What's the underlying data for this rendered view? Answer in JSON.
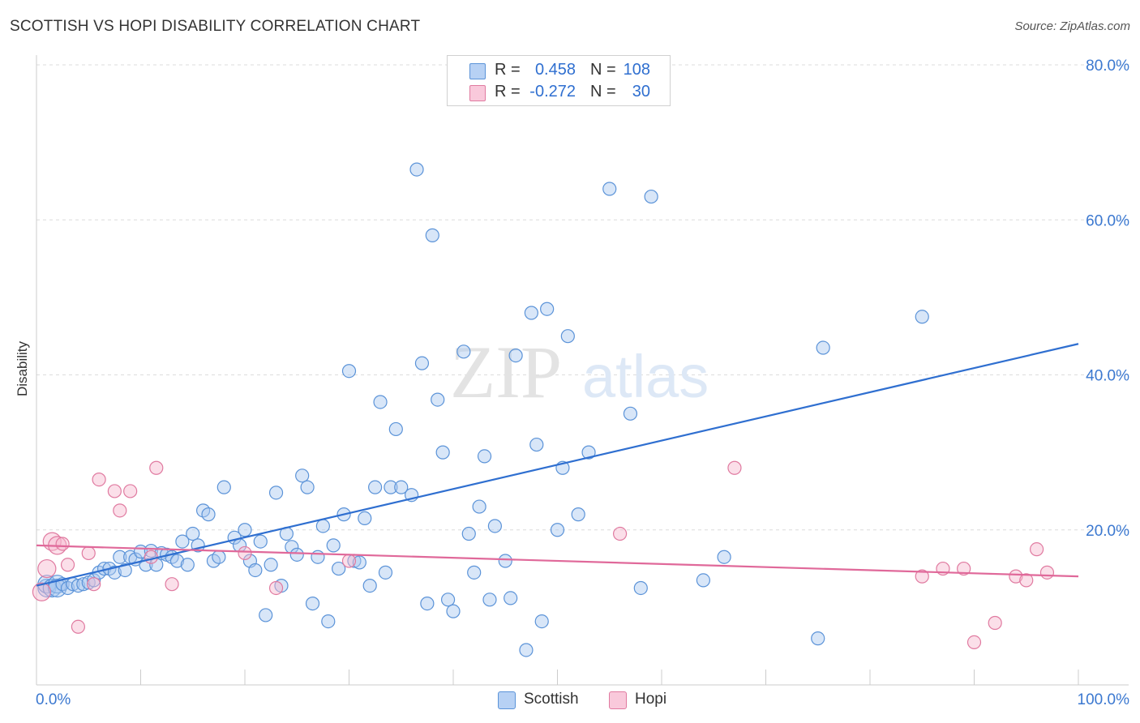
{
  "header": {
    "title": "SCOTTISH VS HOPI DISABILITY CORRELATION CHART",
    "source": "Source: ZipAtlas.com"
  },
  "watermark": {
    "part1": "ZIP",
    "part2": "atlas"
  },
  "stats": {
    "scottish": {
      "r_label": "R =",
      "r_value": "0.458",
      "n_label": "N =",
      "n_value": "108"
    },
    "hopi": {
      "r_label": "R =",
      "r_value": "-0.272",
      "n_label": "N =",
      "n_value": "30"
    }
  },
  "legend": {
    "scottish": "Scottish",
    "hopi": "Hopi"
  },
  "colors": {
    "scottish_fill": "#a9c8f0",
    "scottish_stroke": "#5b93d8",
    "scottish_line": "#2f6fd0",
    "hopi_fill": "#f6b9cf",
    "hopi_stroke": "#e07aa0",
    "hopi_line": "#e0699a",
    "tick_text": "#3b78d0",
    "grid": "#dcdcdc"
  },
  "chart_data": {
    "type": "scatter",
    "title": "SCOTTISH VS HOPI DISABILITY CORRELATION CHART",
    "xlabel": "",
    "ylabel": "Disability",
    "xlim": [
      0,
      100
    ],
    "ylim": [
      0,
      80
    ],
    "x_ticks": [
      {
        "value": 0,
        "label": "0.0%"
      },
      {
        "value": 100,
        "label": "100.0%"
      }
    ],
    "x_minor_ticks": [
      10,
      20,
      30,
      40,
      50,
      60,
      70,
      80,
      90
    ],
    "y_ticks": [
      {
        "value": 20,
        "label": "20.0%"
      },
      {
        "value": 40,
        "label": "40.0%"
      },
      {
        "value": 60,
        "label": "60.0%"
      },
      {
        "value": 80,
        "label": "80.0%"
      }
    ],
    "grid": "horizontal-dashed",
    "legend_position": "bottom-center",
    "series": [
      {
        "name": "Scottish",
        "trend": {
          "x": [
            0,
            100
          ],
          "y": [
            12.8,
            44.0
          ]
        },
        "points": [
          [
            1,
            12.5
          ],
          [
            1,
            13
          ],
          [
            1.5,
            12.5
          ],
          [
            2,
            13
          ],
          [
            2,
            12.5
          ],
          [
            2.5,
            13
          ],
          [
            3,
            12.5
          ],
          [
            3.5,
            13
          ],
          [
            4,
            12.8
          ],
          [
            4.5,
            13
          ],
          [
            5,
            13.2
          ],
          [
            5.5,
            13.5
          ],
          [
            6,
            14.5
          ],
          [
            6.5,
            15
          ],
          [
            7,
            15
          ],
          [
            7.5,
            14.5
          ],
          [
            8,
            16.5
          ],
          [
            8.5,
            14.8
          ],
          [
            9,
            16.5
          ],
          [
            9.5,
            16.2
          ],
          [
            10,
            17.2
          ],
          [
            10.5,
            15.5
          ],
          [
            11,
            17.3
          ],
          [
            11.5,
            15.5
          ],
          [
            12,
            17
          ],
          [
            12.5,
            16.8
          ],
          [
            13,
            16.5
          ],
          [
            13.5,
            16
          ],
          [
            14,
            18.5
          ],
          [
            14.5,
            15.5
          ],
          [
            15,
            19.5
          ],
          [
            15.5,
            18
          ],
          [
            16,
            22.5
          ],
          [
            16.5,
            22
          ],
          [
            17,
            16
          ],
          [
            17.5,
            16.5
          ],
          [
            18,
            25.5
          ],
          [
            19,
            19
          ],
          [
            19.5,
            18
          ],
          [
            20,
            20
          ],
          [
            20.5,
            16
          ],
          [
            21,
            14.8
          ],
          [
            21.5,
            18.5
          ],
          [
            22,
            9
          ],
          [
            22.5,
            15.5
          ],
          [
            23,
            24.8
          ],
          [
            23.5,
            12.8
          ],
          [
            24,
            19.5
          ],
          [
            24.5,
            17.8
          ],
          [
            25,
            16.8
          ],
          [
            25.5,
            27
          ],
          [
            26,
            25.5
          ],
          [
            26.5,
            10.5
          ],
          [
            27,
            16.5
          ],
          [
            27.5,
            20.5
          ],
          [
            28,
            8.2
          ],
          [
            28.5,
            18
          ],
          [
            29,
            15
          ],
          [
            29.5,
            22
          ],
          [
            30,
            40.5
          ],
          [
            30.5,
            16
          ],
          [
            31,
            15.8
          ],
          [
            31.5,
            21.5
          ],
          [
            32,
            12.8
          ],
          [
            32.5,
            25.5
          ],
          [
            33,
            36.5
          ],
          [
            33.5,
            14.5
          ],
          [
            34,
            25.5
          ],
          [
            34.5,
            33
          ],
          [
            35,
            25.5
          ],
          [
            36,
            24.5
          ],
          [
            36.5,
            66.5
          ],
          [
            37,
            41.5
          ],
          [
            37.5,
            10.5
          ],
          [
            38,
            58
          ],
          [
            38.5,
            36.8
          ],
          [
            39,
            30
          ],
          [
            39.5,
            11
          ],
          [
            40,
            9.5
          ],
          [
            41,
            43
          ],
          [
            41.5,
            19.5
          ],
          [
            42,
            14.5
          ],
          [
            42.5,
            23
          ],
          [
            43,
            29.5
          ],
          [
            43.5,
            11
          ],
          [
            44,
            20.5
          ],
          [
            45,
            16
          ],
          [
            45.5,
            11.2
          ],
          [
            46,
            42.5
          ],
          [
            47,
            4.5
          ],
          [
            47.5,
            48
          ],
          [
            48,
            31
          ],
          [
            48.5,
            8.2
          ],
          [
            49,
            48.5
          ],
          [
            50,
            20
          ],
          [
            50.5,
            28
          ],
          [
            51,
            45
          ],
          [
            52,
            22
          ],
          [
            53,
            30
          ],
          [
            55,
            64
          ],
          [
            57,
            35
          ],
          [
            58,
            12.5
          ],
          [
            59,
            63
          ],
          [
            64,
            13.5
          ],
          [
            66,
            16.5
          ],
          [
            75,
            6
          ],
          [
            75.5,
            43.5
          ],
          [
            85,
            47.5
          ]
        ]
      },
      {
        "name": "Hopi",
        "trend": {
          "x": [
            0,
            100
          ],
          "y": [
            18.0,
            14.0
          ]
        },
        "points": [
          [
            0.5,
            12
          ],
          [
            1,
            15
          ],
          [
            1.5,
            18.5
          ],
          [
            2,
            18
          ],
          [
            2.5,
            18.2
          ],
          [
            3,
            15.5
          ],
          [
            4,
            7.5
          ],
          [
            5,
            17
          ],
          [
            5.5,
            13
          ],
          [
            6,
            26.5
          ],
          [
            7.5,
            25
          ],
          [
            8,
            22.5
          ],
          [
            9,
            25
          ],
          [
            11,
            16.5
          ],
          [
            11.5,
            28
          ],
          [
            13,
            13
          ],
          [
            20,
            17
          ],
          [
            23,
            12.5
          ],
          [
            30,
            16
          ],
          [
            56,
            19.5
          ],
          [
            67,
            28
          ],
          [
            85,
            14
          ],
          [
            87,
            15
          ],
          [
            89,
            15
          ],
          [
            90,
            5.5
          ],
          [
            92,
            8
          ],
          [
            94,
            14
          ],
          [
            95,
            13.5
          ],
          [
            96,
            17.5
          ],
          [
            97,
            14.5
          ]
        ]
      }
    ]
  }
}
